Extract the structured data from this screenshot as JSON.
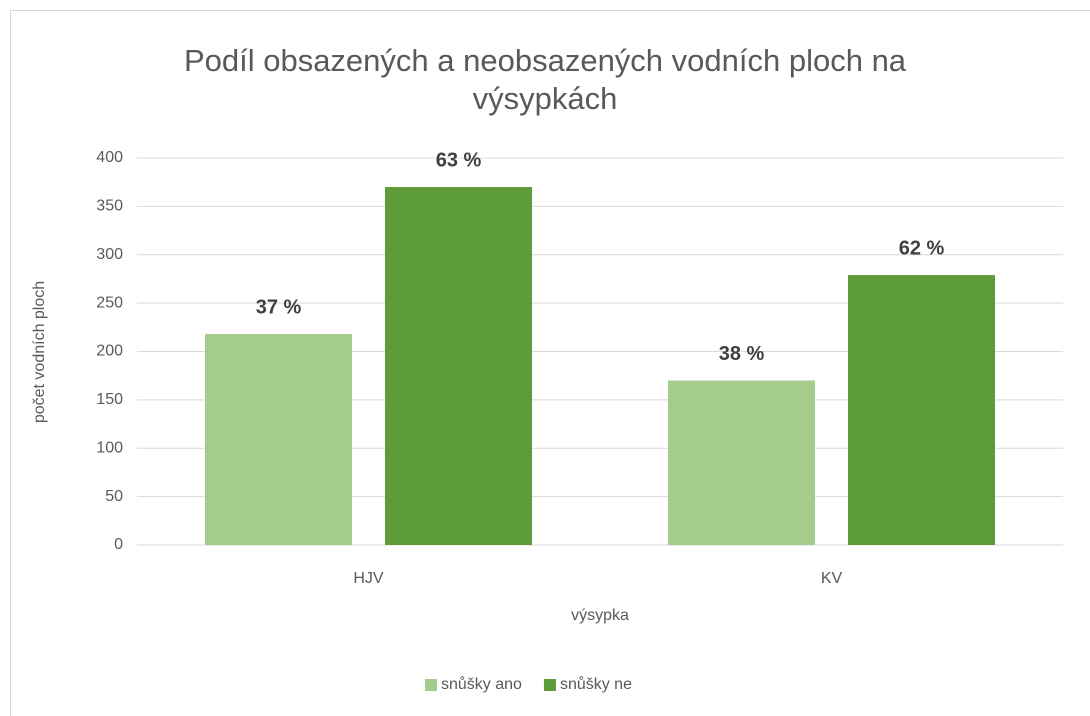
{
  "chart_data": {
    "type": "bar",
    "title": "Podíl obsazených a neobsazených vodních ploch na výsypkách",
    "x_label": "výsypka",
    "y_label": "počet vodních ploch",
    "categories": [
      "HJV",
      "KV"
    ],
    "series": [
      {
        "name": "snůšky ano",
        "color": "#a4cc8b",
        "values": [
          218,
          170
        ],
        "percent_labels": [
          "37 %",
          "38 %"
        ]
      },
      {
        "name": "snůšky ne",
        "color": "#5e9c3a",
        "values": [
          370,
          279
        ],
        "percent_labels": [
          "63 %",
          "62 %"
        ]
      }
    ],
    "ylim": [
      0,
      400
    ],
    "yticks": [
      0,
      50,
      100,
      150,
      200,
      250,
      300,
      350,
      400
    ],
    "grid": true,
    "legend": "bottom"
  }
}
